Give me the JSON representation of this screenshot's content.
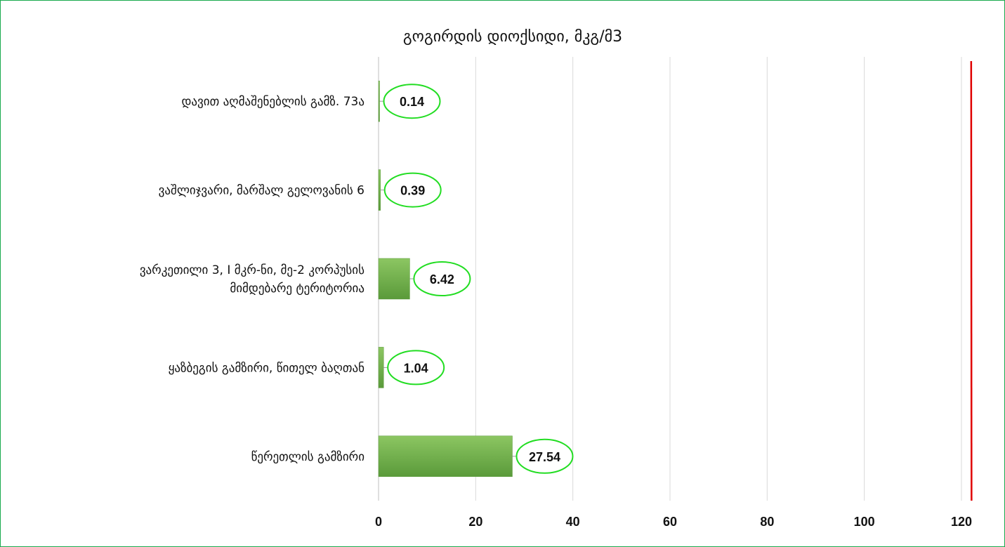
{
  "chart_data": {
    "type": "bar",
    "orientation": "horizontal",
    "title": "გოგირდის დიოქსიდი, მკგ/მ3",
    "categories": [
      "დავით აღმაშენებლის გამზ. 73ა",
      "ვაშლიჯვარი, მარშალ გელოვანის 6",
      "ვარკეთილი 3, I მკრ-ნი, მე-2 კორპუსის მიმდებარე ტერიტორია",
      "ყაზბეგის გამზირი, წითელ ბაღთან",
      "წერეთლის გამზირი"
    ],
    "category_lines": [
      [
        "დავით აღმაშენებლის გამზ. 73ა"
      ],
      [
        "ვაშლიჯვარი, მარშალ გელოვანის 6"
      ],
      [
        "ვარკეთილი 3, I მკრ-ნი, მე-2 კორპუსის",
        "მიმდებარე ტერიტორია"
      ],
      [
        "ყაზბეგის გამზირი, წითელ ბაღთან"
      ],
      [
        "წერეთლის გამზირი"
      ]
    ],
    "values": [
      0.14,
      0.39,
      6.42,
      1.04,
      27.54
    ],
    "data_labels": [
      "0.14",
      "0.39",
      "6.42",
      "1.04",
      "27.54"
    ],
    "xlim": [
      0,
      120
    ],
    "xticks": [
      0,
      20,
      40,
      60,
      80,
      100,
      120
    ],
    "xtick_labels": [
      "0",
      "20",
      "40",
      "60",
      "80",
      "100",
      "120"
    ],
    "reference_line_value": 122,
    "gridlines": "vertical",
    "legend": "none",
    "colors": {
      "bar": "#70ad47",
      "bar_light": "#8cc662",
      "bar_dark": "#5a9a3a",
      "label_oval": "#22dd22",
      "reference_line": "#e00000",
      "grid": "#d9d9d9",
      "frame": "#1aaa4e"
    }
  }
}
